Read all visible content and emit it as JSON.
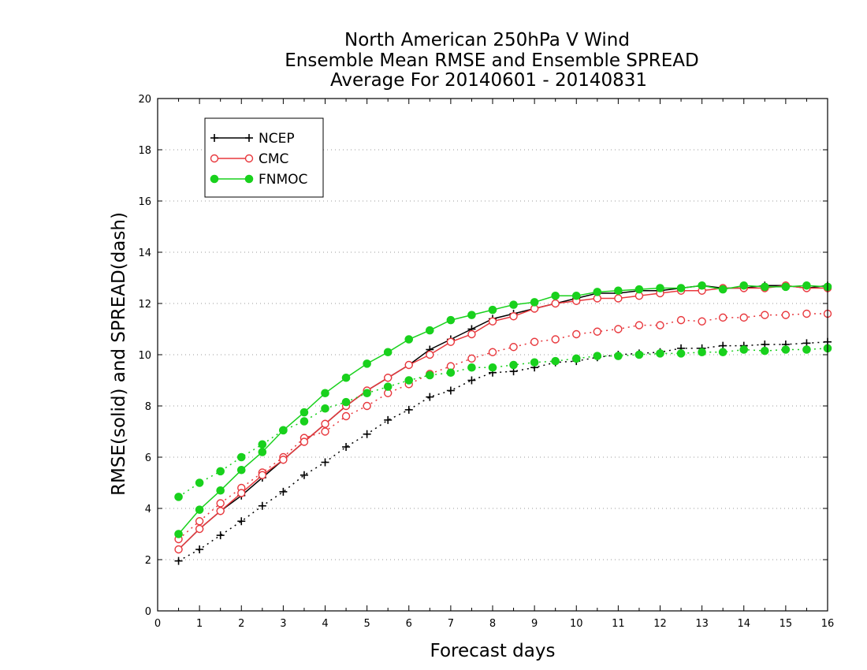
{
  "chart_data": {
    "type": "line",
    "title": [
      "North American 250hPa V Wind",
      "Ensemble Mean RMSE and Ensemble SPREAD",
      "Average For 20140601 - 20140831"
    ],
    "xlabel": "Forecast days",
    "ylabel": "RMSE(solid) and SPREAD(dash)",
    "xlim": [
      0,
      16
    ],
    "ylim": [
      0,
      20
    ],
    "xticks": [
      "0",
      "1",
      "2",
      "3",
      "4",
      "5",
      "6",
      "7",
      "8",
      "9",
      "10",
      "11",
      "12",
      "13",
      "14",
      "15",
      "16"
    ],
    "yticks": [
      "0",
      "2",
      "4",
      "6",
      "8",
      "10",
      "12",
      "14",
      "16",
      "18",
      "20"
    ],
    "grid": "horizontal dotted",
    "legend_position": "top-left",
    "x": [
      0.5,
      1,
      1.5,
      2,
      2.5,
      3,
      3.5,
      4,
      4.5,
      5,
      5.5,
      6,
      6.5,
      7,
      7.5,
      8,
      8.5,
      9,
      9.5,
      10,
      10.5,
      11,
      11.5,
      12,
      12.5,
      13,
      13.5,
      14,
      14.5,
      15,
      15.5,
      16
    ],
    "series": [
      {
        "name": "NCEP",
        "color": "#000000",
        "marker": "plus",
        "rmse": [
          2.4,
          3.2,
          3.9,
          4.5,
          5.2,
          5.9,
          6.6,
          7.3,
          8.0,
          8.6,
          9.1,
          9.6,
          10.2,
          10.6,
          11.0,
          11.4,
          11.6,
          11.8,
          12.0,
          12.2,
          12.4,
          12.4,
          12.5,
          12.5,
          12.6,
          12.7,
          12.6,
          12.6,
          12.7,
          12.7,
          12.6,
          12.7
        ],
        "spread": [
          1.95,
          2.4,
          2.95,
          3.5,
          4.1,
          4.65,
          5.3,
          5.8,
          6.4,
          6.9,
          7.45,
          7.85,
          8.35,
          8.6,
          9.0,
          9.3,
          9.35,
          9.5,
          9.7,
          9.75,
          9.9,
          10.0,
          10.05,
          10.1,
          10.25,
          10.25,
          10.35,
          10.35,
          10.4,
          10.4,
          10.45,
          10.5
        ]
      },
      {
        "name": "CMC",
        "color": "#e8383d",
        "marker": "open-circle",
        "rmse": [
          2.4,
          3.2,
          3.9,
          4.6,
          5.3,
          5.9,
          6.6,
          7.3,
          8.0,
          8.6,
          9.1,
          9.6,
          10.0,
          10.5,
          10.8,
          11.3,
          11.5,
          11.8,
          12.0,
          12.1,
          12.2,
          12.2,
          12.3,
          12.4,
          12.5,
          12.5,
          12.6,
          12.6,
          12.6,
          12.7,
          12.6,
          12.6
        ],
        "spread": [
          2.8,
          3.5,
          4.2,
          4.8,
          5.4,
          6.0,
          6.75,
          7.0,
          7.6,
          8.0,
          8.5,
          8.85,
          9.25,
          9.55,
          9.85,
          10.1,
          10.3,
          10.5,
          10.6,
          10.8,
          10.9,
          11.0,
          11.15,
          11.15,
          11.35,
          11.3,
          11.45,
          11.45,
          11.55,
          11.55,
          11.6,
          11.6
        ]
      },
      {
        "name": "FNMOC",
        "color": "#19d11d",
        "marker": "filled-circle",
        "rmse": [
          3.0,
          3.95,
          4.7,
          5.5,
          6.2,
          7.05,
          7.75,
          8.5,
          9.1,
          9.65,
          10.1,
          10.6,
          10.95,
          11.35,
          11.55,
          11.75,
          11.95,
          12.05,
          12.3,
          12.3,
          12.45,
          12.5,
          12.55,
          12.6,
          12.6,
          12.7,
          12.55,
          12.7,
          12.65,
          12.65,
          12.7,
          12.65
        ],
        "spread": [
          4.45,
          5.0,
          5.45,
          6.0,
          6.5,
          7.05,
          7.4,
          7.9,
          8.15,
          8.5,
          8.75,
          9.0,
          9.2,
          9.3,
          9.5,
          9.5,
          9.6,
          9.7,
          9.75,
          9.85,
          9.95,
          9.95,
          10.0,
          10.05,
          10.05,
          10.1,
          10.1,
          10.2,
          10.15,
          10.2,
          10.2,
          10.25
        ]
      }
    ]
  }
}
